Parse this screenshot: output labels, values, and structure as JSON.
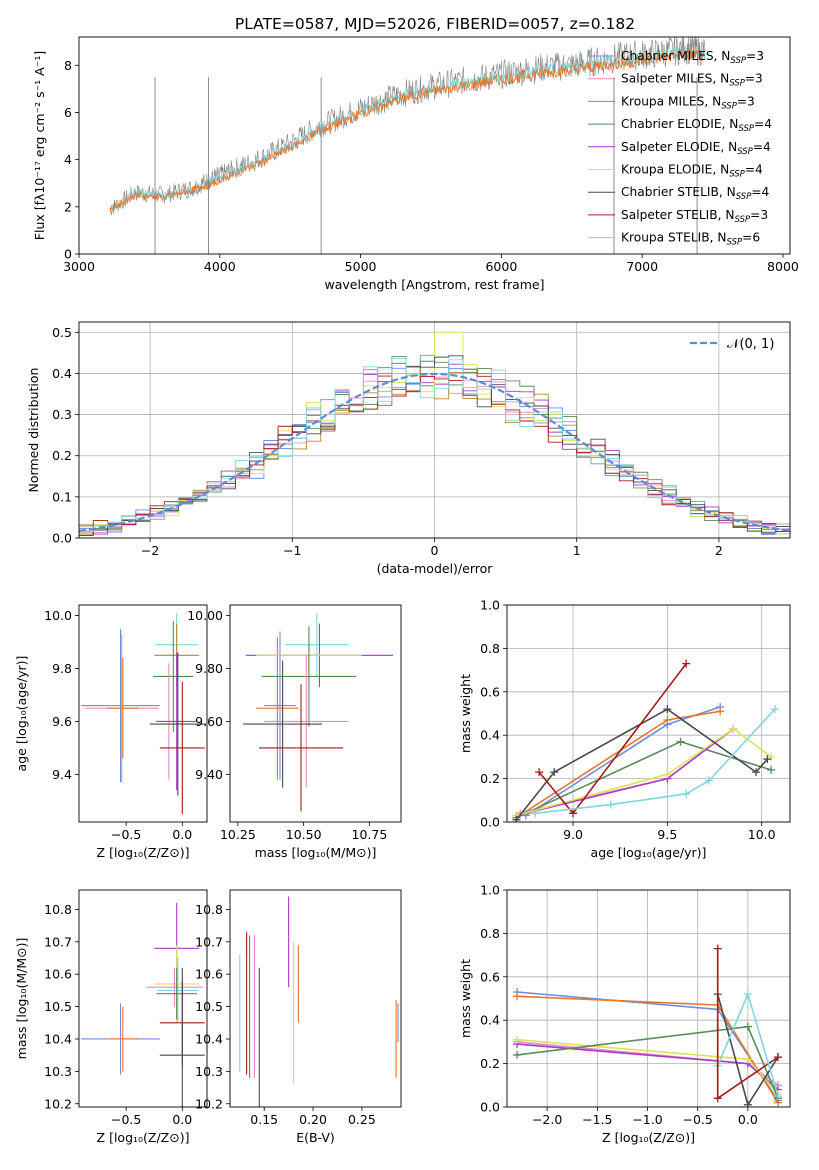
{
  "suptitle": "PLATE=0587, MJD=52026, FIBERID=0057, z=0.182",
  "legend": [
    {
      "label": "Chabrier MILES, N",
      "sub": "SSP",
      "val": "=3",
      "color": "#6f8fdc"
    },
    {
      "label": "Salpeter MILES, N",
      "sub": "SSP",
      "val": "=3",
      "color": "#e98ac6"
    },
    {
      "label": "Kroupa MILES, N",
      "sub": "SSP",
      "val": "=3",
      "color": "#b8862b"
    },
    {
      "label": "Chabrier ELODIE, N",
      "sub": "SSP",
      "val": "=4",
      "color": "#5b8a5b"
    },
    {
      "label": "Salpeter ELODIE, N",
      "sub": "SSP",
      "val": "=4",
      "color": "#a63cc4"
    },
    {
      "label": "Kroupa ELODIE, N",
      "sub": "SSP",
      "val": "=4",
      "color": "#dbe35a"
    },
    {
      "label": "Chabrier STELIB, N",
      "sub": "SSP",
      "val": "=4",
      "color": "#4a4a4a"
    },
    {
      "label": "Salpeter STELIB, N",
      "sub": "SSP",
      "val": "=3",
      "color": "#a61c1c"
    },
    {
      "label": "Kroupa STELIB, N",
      "sub": "SSP",
      "val": "=6",
      "color": "#7fd6dc"
    }
  ],
  "chart_data": [
    {
      "id": "spectrum",
      "type": "line",
      "xlabel": "wavelength [Angstrom, rest frame]",
      "ylabel": "Flux [fλ10⁻¹⁷ erg cm⁻² s⁻¹ A⁻¹]",
      "xlim": [
        3000,
        8050
      ],
      "ylim": [
        0,
        9.2
      ],
      "xticks": [
        3000,
        4000,
        5000,
        6000,
        7000,
        8000
      ],
      "yticks": [
        0,
        2,
        4,
        6,
        8
      ],
      "grid": false,
      "series": [
        {
          "color": "#808080",
          "x": [
            3220,
            3400,
            3600,
            3800,
            3950,
            4100,
            4300,
            4500,
            4700,
            4900,
            5100,
            5300,
            5500,
            5700,
            5900,
            6100,
            6300,
            6500,
            6700,
            6900,
            7100,
            7300,
            7450
          ],
          "y": [
            1.9,
            2.6,
            2.5,
            2.8,
            3.2,
            3.6,
            4.1,
            4.7,
            5.4,
            5.9,
            6.4,
            6.8,
            7.1,
            7.3,
            7.5,
            7.7,
            7.9,
            8.0,
            8.2,
            8.4,
            8.5,
            8.7,
            8.6
          ]
        },
        {
          "color": "#7fd6dc",
          "x": [
            3220,
            3400,
            3600,
            3800,
            3950,
            4100,
            4300,
            4500,
            4700,
            4900,
            5100,
            5300,
            5500,
            5700,
            5900,
            6100,
            6300,
            6500,
            6700,
            6900,
            7100,
            7300,
            7450
          ],
          "y": [
            1.9,
            2.6,
            2.5,
            2.7,
            3.1,
            3.5,
            4.0,
            4.6,
            5.3,
            5.8,
            6.3,
            6.7,
            7.0,
            7.2,
            7.4,
            7.6,
            7.8,
            7.9,
            8.1,
            8.2,
            8.4,
            8.6,
            8.5
          ]
        },
        {
          "color": "#e8762c",
          "x": [
            3220,
            3400,
            3600,
            3800,
            3950,
            4100,
            4300,
            4500,
            4700,
            4900,
            5100,
            5300,
            5500,
            5700,
            5900,
            6100,
            6300,
            6500,
            6700,
            6900,
            7100,
            7300,
            7450
          ],
          "y": [
            1.9,
            2.5,
            2.4,
            2.7,
            3.0,
            3.4,
            3.9,
            4.5,
            5.2,
            5.7,
            6.2,
            6.6,
            6.9,
            7.1,
            7.3,
            7.5,
            7.7,
            7.8,
            8.0,
            8.1,
            8.3,
            8.5,
            8.4
          ]
        }
      ]
    },
    {
      "id": "residuals",
      "type": "line",
      "xlabel": "(data-model)/error",
      "ylabel": "Normed distribution",
      "xlim": [
        -2.5,
        2.5
      ],
      "ylim": [
        0,
        0.525
      ],
      "xticks": [
        -2,
        -1,
        0,
        1,
        2
      ],
      "yticks": [
        0.0,
        0.1,
        0.2,
        0.3,
        0.4,
        0.5
      ],
      "grid": true,
      "legend_label": "𝒩(0, 1)",
      "legend_position": "top-right",
      "gaussian": {
        "mu": 0,
        "sigma": 1,
        "color": "#5b8bd9"
      }
    },
    {
      "id": "age-vs-z",
      "type": "scatter",
      "xlabel": "Z [log₁₀(Z/Z⊙)]",
      "ylabel": "age  [log₁₀(age/yr)]",
      "xlim": [
        -0.92,
        0.22
      ],
      "ylim": [
        9.22,
        10.04
      ],
      "xticks": [
        -0.5,
        0.0
      ],
      "yticks": [
        9.4,
        9.6,
        9.8,
        10.0
      ],
      "grid": false,
      "points": [
        {
          "x": -0.55,
          "y": 9.66,
          "xe": 0.35,
          "ye": 0.29,
          "c": "#6f8fdc"
        },
        {
          "x": -0.54,
          "y": 9.65,
          "xe": 0.33,
          "ye": 0.28,
          "c": "#e98ac6"
        },
        {
          "x": -0.53,
          "y": 9.65,
          "xe": 0.14,
          "ye": 0.19,
          "c": "#e8762c"
        },
        {
          "x": -0.05,
          "y": 9.89,
          "xe": 0.19,
          "ye": 0.12,
          "c": "#7fd6dc"
        },
        {
          "x": -0.05,
          "y": 9.85,
          "xe": 0.2,
          "ye": 0.12,
          "c": "#b8862b"
        },
        {
          "x": -0.08,
          "y": 9.77,
          "xe": 0.18,
          "ye": 0.21,
          "c": "#5b8a5b"
        },
        {
          "x": -0.12,
          "y": 9.6,
          "xe": 0.12,
          "ye": 0.22,
          "c": "#e98ac6"
        },
        {
          "x": -0.05,
          "y": 9.6,
          "xe": 0.18,
          "ye": 0.26,
          "c": "#a63cc4"
        },
        {
          "x": -0.04,
          "y": 9.59,
          "xe": 0.25,
          "ye": 0.27,
          "c": "#4a4a4a"
        },
        {
          "x": 0.0,
          "y": 9.5,
          "xe": 0.2,
          "ye": 0.25,
          "c": "#a61c1c"
        }
      ]
    },
    {
      "id": "age-vs-mass",
      "type": "scatter",
      "xlabel": "mass [log₁₀(M/M⊙)]",
      "ylabel": "",
      "xlim": [
        10.22,
        10.87
      ],
      "ylim": [
        9.22,
        10.04
      ],
      "xticks": [
        10.25,
        10.5,
        10.75
      ],
      "yticks": [
        9.4,
        9.6,
        9.8,
        10.0
      ],
      "grid": false,
      "points": [
        {
          "x": 10.41,
          "y": 9.66,
          "xe": 0.06,
          "ye": 0.28,
          "c": "#6f8fdc"
        },
        {
          "x": 10.4,
          "y": 9.65,
          "xe": 0.08,
          "ye": 0.27,
          "c": "#e8762c"
        },
        {
          "x": 10.55,
          "y": 9.89,
          "xe": 0.12,
          "ye": 0.12,
          "c": "#7fd6dc"
        },
        {
          "x": 10.56,
          "y": 9.85,
          "xe": 0.28,
          "ye": 0.12,
          "c": "#a63cc4"
        },
        {
          "x": 10.52,
          "y": 9.85,
          "xe": 0.2,
          "ye": 0.1,
          "c": "#dbe35a"
        },
        {
          "x": 10.52,
          "y": 9.77,
          "xe": 0.18,
          "ye": 0.19,
          "c": "#5b8a5b"
        },
        {
          "x": 10.51,
          "y": 9.6,
          "xe": 0.16,
          "ye": 0.25,
          "c": "#e98ac6"
        },
        {
          "x": 10.42,
          "y": 9.59,
          "xe": 0.15,
          "ye": 0.24,
          "c": "#4a4a4a"
        },
        {
          "x": 10.49,
          "y": 9.5,
          "xe": 0.16,
          "ye": 0.24,
          "c": "#a61c1c"
        }
      ]
    },
    {
      "id": "massweight-vs-age",
      "type": "line",
      "xlabel": "age  [log₁₀(age/yr)]",
      "ylabel": "mass weight",
      "xlim": [
        8.65,
        10.15
      ],
      "ylim": [
        0,
        1.0
      ],
      "xticks": [
        9.0,
        9.5,
        10.0
      ],
      "yticks": [
        0.0,
        0.2,
        0.4,
        0.6,
        0.8,
        1.0
      ],
      "grid": true,
      "series": [
        {
          "color": "#6f8fdc",
          "x": [
            8.75,
            9.5,
            9.78
          ],
          "y": [
            0.03,
            0.45,
            0.53
          ]
        },
        {
          "color": "#e98ac6",
          "x": [
            8.72,
            9.5,
            9.85
          ],
          "y": [
            0.04,
            0.2,
            0.43
          ]
        },
        {
          "color": "#e8762c",
          "x": [
            8.7,
            9.5,
            9.78
          ],
          "y": [
            0.02,
            0.47,
            0.51
          ]
        },
        {
          "color": "#5b8a5b",
          "x": [
            8.7,
            9.57,
            10.05
          ],
          "y": [
            0.02,
            0.37,
            0.24
          ]
        },
        {
          "color": "#a63cc4",
          "x": [
            8.7,
            9.5,
            9.85
          ],
          "y": [
            0.03,
            0.2,
            0.43
          ]
        },
        {
          "color": "#dbe35a",
          "x": [
            8.7,
            9.5,
            9.85,
            10.05
          ],
          "y": [
            0.03,
            0.22,
            0.43,
            0.3
          ]
        },
        {
          "color": "#4a4a4a",
          "x": [
            8.7,
            8.9,
            9.5,
            9.97,
            10.03
          ],
          "y": [
            0.01,
            0.23,
            0.52,
            0.23,
            0.29
          ]
        },
        {
          "color": "#a61c1c",
          "x": [
            8.82,
            9.0,
            9.6
          ],
          "y": [
            0.23,
            0.04,
            0.73
          ]
        },
        {
          "color": "#7fd6dc",
          "x": [
            8.8,
            9.2,
            9.6,
            9.72,
            10.07
          ],
          "y": [
            0.04,
            0.08,
            0.13,
            0.19,
            0.52
          ]
        }
      ]
    },
    {
      "id": "mass-vs-z",
      "type": "scatter",
      "xlabel": "Z [log₁₀(Z/Z⊙)]",
      "ylabel": "mass [log₁₀(M/M⊙)]",
      "xlim": [
        -0.92,
        0.22
      ],
      "ylim": [
        10.19,
        10.86
      ],
      "xticks": [
        -0.5,
        0.0
      ],
      "yticks": [
        10.2,
        10.3,
        10.4,
        10.5,
        10.6,
        10.7,
        10.8
      ],
      "grid": false,
      "points": [
        {
          "x": -0.55,
          "y": 10.4,
          "xe": 0.35,
          "ye": 0.11,
          "c": "#6f8fdc"
        },
        {
          "x": -0.53,
          "y": 10.4,
          "xe": 0.14,
          "ye": 0.1,
          "c": "#e8762c"
        },
        {
          "x": -0.05,
          "y": 10.68,
          "xe": 0.2,
          "ye": 0.14,
          "c": "#a63cc4"
        },
        {
          "x": -0.05,
          "y": 10.57,
          "xe": 0.2,
          "ye": 0.12,
          "c": "#dbe35a"
        },
        {
          "x": -0.07,
          "y": 10.56,
          "xe": 0.25,
          "ye": 0.06,
          "c": "#e98ac6"
        },
        {
          "x": -0.04,
          "y": 10.55,
          "xe": 0.18,
          "ye": 0.1,
          "c": "#7fd6dc"
        },
        {
          "x": -0.05,
          "y": 10.54,
          "xe": 0.18,
          "ye": 0.08,
          "c": "#5b8a5b"
        },
        {
          "x": 0.0,
          "y": 10.45,
          "xe": 0.2,
          "ye": 0.13,
          "c": "#a61c1c"
        },
        {
          "x": 0.0,
          "y": 10.35,
          "xe": 0.2,
          "ye": 0.27,
          "c": "#4a4a4a"
        }
      ]
    },
    {
      "id": "mass-vs-ebv",
      "type": "scatter",
      "xlabel": "E(B-V)",
      "ylabel": "",
      "xlim": [
        0.115,
        0.29
      ],
      "ylim": [
        10.19,
        10.86
      ],
      "xticks": [
        0.15,
        0.2,
        0.25
      ],
      "yticks": [
        10.2,
        10.3,
        10.4,
        10.5,
        10.6,
        10.7,
        10.8
      ],
      "grid": false,
      "points": [
        {
          "x": 0.125,
          "y": 10.48,
          "xe": 0.0,
          "ye": 0.18,
          "c": "#7fd6dc"
        },
        {
          "x": 0.132,
          "y": 10.51,
          "xe": 0.0,
          "ye": 0.22,
          "c": "#a61c1c"
        },
        {
          "x": 0.135,
          "y": 10.5,
          "xe": 0.0,
          "ye": 0.22,
          "c": "#5b8a5b"
        },
        {
          "x": 0.14,
          "y": 10.5,
          "xe": 0.0,
          "ye": 0.22,
          "c": "#e98ac6"
        },
        {
          "x": 0.145,
          "y": 10.4,
          "xe": 0.0,
          "ye": 0.22,
          "c": "#4a4a4a"
        },
        {
          "x": 0.175,
          "y": 10.7,
          "xe": 0.0,
          "ye": 0.14,
          "c": "#a63cc4"
        },
        {
          "x": 0.18,
          "y": 10.48,
          "xe": 0.0,
          "ye": 0.22,
          "c": "#dbe35a"
        },
        {
          "x": 0.185,
          "y": 10.57,
          "xe": 0.0,
          "ye": 0.12,
          "c": "#e8762c"
        },
        {
          "x": 0.285,
          "y": 10.4,
          "xe": 0.0,
          "ye": 0.12,
          "c": "#e8762c"
        },
        {
          "x": 0.287,
          "y": 10.45,
          "xe": 0.0,
          "ye": 0.06,
          "c": "#6f8fdc"
        }
      ]
    },
    {
      "id": "massweight-vs-z",
      "type": "line",
      "xlabel": "Z [log₁₀(Z/Z⊙)]",
      "ylabel": "mass weight",
      "xlim": [
        -2.4,
        0.42
      ],
      "ylim": [
        0,
        1.0
      ],
      "xticks": [
        -2.0,
        -1.5,
        -1.0,
        -0.5,
        0.0
      ],
      "yticks": [
        0.0,
        0.2,
        0.4,
        0.6,
        0.8,
        1.0
      ],
      "grid": true,
      "series": [
        {
          "color": "#6f8fdc",
          "x": [
            -2.3,
            -0.3,
            0.3
          ],
          "y": [
            0.53,
            0.45,
            0.03
          ]
        },
        {
          "color": "#e8762c",
          "x": [
            -2.3,
            -0.3,
            0.3
          ],
          "y": [
            0.51,
            0.47,
            0.02
          ]
        },
        {
          "color": "#e98ac6",
          "x": [
            -2.3,
            0.0,
            0.3
          ],
          "y": [
            0.3,
            0.2,
            0.1
          ]
        },
        {
          "color": "#a63cc4",
          "x": [
            -2.3,
            0.0,
            0.3
          ],
          "y": [
            0.29,
            0.2,
            0.08
          ]
        },
        {
          "color": "#dbe35a",
          "x": [
            -2.3,
            0.0,
            0.3
          ],
          "y": [
            0.31,
            0.22,
            0.06
          ]
        },
        {
          "color": "#5b8a5b",
          "x": [
            -2.3,
            0.0,
            0.3
          ],
          "y": [
            0.24,
            0.37,
            0.04
          ]
        },
        {
          "color": "#4a4a4a",
          "x": [
            -0.3,
            0.0,
            0.3
          ],
          "y": [
            0.52,
            0.01,
            0.23
          ]
        },
        {
          "color": "#a61c1c",
          "x": [
            -0.3,
            -0.3,
            0.3
          ],
          "y": [
            0.73,
            0.04,
            0.23
          ]
        },
        {
          "color": "#7fd6dc",
          "x": [
            -0.3,
            0.0,
            0.3
          ],
          "y": [
            0.19,
            0.52,
            0.05
          ]
        }
      ]
    }
  ]
}
